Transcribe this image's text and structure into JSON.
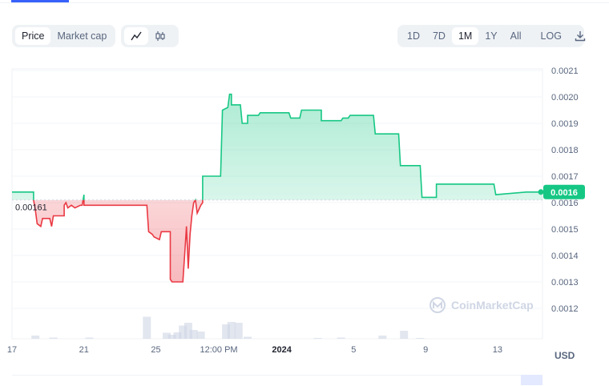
{
  "toolbar": {
    "mode_tabs": [
      {
        "label": "Price",
        "active": true
      },
      {
        "label": "Market cap",
        "active": false
      }
    ],
    "view_icons": [
      {
        "icon": "line-chart-icon",
        "active": true
      },
      {
        "icon": "candlestick-icon",
        "active": false
      }
    ],
    "ranges": [
      {
        "label": "1D",
        "active": false
      },
      {
        "label": "7D",
        "active": false
      },
      {
        "label": "1M",
        "active": true
      },
      {
        "label": "1Y",
        "active": false
      },
      {
        "label": "All",
        "active": false
      },
      {
        "label": "LOG",
        "active": false
      }
    ],
    "download_icon": "download-icon"
  },
  "watermark": "CoinMarketCap",
  "currency_label": "USD",
  "chart_data": {
    "type": "line",
    "title": "",
    "xlabel": "",
    "ylabel": "",
    "baseline_label": "0.00161",
    "baseline_value": 0.00161,
    "current_price_label": "0.0016",
    "current_price": 0.00164,
    "ylim": [
      0.0011,
      0.0021
    ],
    "y_ticks": [
      "0.0021",
      "0.0020",
      "0.0019",
      "0.0018",
      "0.0017",
      "0.0016",
      "0.0015",
      "0.0014",
      "0.0013",
      "0.0012"
    ],
    "y_tick_values": [
      0.0021,
      0.002,
      0.0019,
      0.0018,
      0.0017,
      0.0016,
      0.0015,
      0.0014,
      0.0013,
      0.0012
    ],
    "xlim": [
      17,
      46.5
    ],
    "x_ticks": [
      {
        "label": "17",
        "x": 17,
        "bold": false
      },
      {
        "label": "21",
        "x": 21,
        "bold": false
      },
      {
        "label": "25",
        "x": 25,
        "bold": false
      },
      {
        "label": "12:00 PM",
        "x": 28.5,
        "bold": false
      },
      {
        "label": "2024",
        "x": 32,
        "bold": true
      },
      {
        "label": "5",
        "x": 36,
        "bold": false
      },
      {
        "label": "9",
        "x": 40,
        "bold": false
      },
      {
        "label": "13",
        "x": 44,
        "bold": false
      }
    ],
    "colors": {
      "up": "#16c784",
      "down": "#ea3943",
      "volume": "#cfd6e4"
    },
    "series": [
      {
        "points": [
          [
            17.0,
            0.00164
          ],
          [
            18.2,
            0.00164
          ],
          [
            18.2,
            0.00161
          ],
          [
            18.3,
            0.00157
          ],
          [
            18.4,
            0.00152
          ],
          [
            18.6,
            0.00151
          ],
          [
            18.7,
            0.00154
          ],
          [
            19.1,
            0.00154
          ],
          [
            19.2,
            0.00151
          ],
          [
            19.3,
            0.00155
          ],
          [
            19.9,
            0.00155
          ],
          [
            19.9,
            0.00159
          ],
          [
            20.0,
            0.0016
          ],
          [
            20.1,
            0.00158
          ],
          [
            20.3,
            0.00159
          ],
          [
            20.5,
            0.00158
          ],
          [
            20.8,
            0.00159
          ],
          [
            20.9,
            0.00159
          ],
          [
            21.0,
            0.00163
          ],
          [
            21.0,
            0.00159
          ],
          [
            24.5,
            0.00159
          ],
          [
            24.6,
            0.00149
          ],
          [
            24.8,
            0.00148
          ],
          [
            24.9,
            0.00147
          ],
          [
            25.2,
            0.00146
          ],
          [
            25.3,
            0.00149
          ],
          [
            25.8,
            0.00149
          ],
          [
            25.8,
            0.00131
          ],
          [
            25.9,
            0.0013
          ],
          [
            26.5,
            0.0013
          ],
          [
            26.6,
            0.0014
          ],
          [
            26.7,
            0.00151
          ],
          [
            26.8,
            0.00135
          ],
          [
            26.9,
            0.00148
          ],
          [
            27.0,
            0.00155
          ],
          [
            27.1,
            0.0016
          ],
          [
            27.2,
            0.00161
          ],
          [
            27.3,
            0.00156
          ],
          [
            27.5,
            0.00159
          ],
          [
            27.6,
            0.0016
          ],
          [
            27.6,
            0.0017
          ],
          [
            28.6,
            0.0017
          ],
          [
            28.7,
            0.00195
          ],
          [
            29.0,
            0.00196
          ],
          [
            29.1,
            0.00201
          ],
          [
            29.2,
            0.00201
          ],
          [
            29.2,
            0.00197
          ],
          [
            29.7,
            0.00197
          ],
          [
            29.8,
            0.0019
          ],
          [
            30.1,
            0.0019
          ],
          [
            30.1,
            0.00193
          ],
          [
            30.7,
            0.00193
          ],
          [
            30.8,
            0.00194
          ],
          [
            32.4,
            0.00194
          ],
          [
            32.5,
            0.00192
          ],
          [
            33.0,
            0.00192
          ],
          [
            33.1,
            0.00195
          ],
          [
            34.2,
            0.00195
          ],
          [
            34.2,
            0.00191
          ],
          [
            35.3,
            0.00191
          ],
          [
            35.4,
            0.00192
          ],
          [
            35.7,
            0.00192
          ],
          [
            35.8,
            0.00193
          ],
          [
            37.1,
            0.00193
          ],
          [
            37.2,
            0.00186
          ],
          [
            38.5,
            0.00186
          ],
          [
            38.6,
            0.00174
          ],
          [
            39.7,
            0.00174
          ],
          [
            39.8,
            0.00162
          ],
          [
            40.6,
            0.00162
          ],
          [
            40.6,
            0.00167
          ],
          [
            43.8,
            0.00167
          ],
          [
            43.9,
            0.00163
          ],
          [
            45.6,
            0.00164
          ],
          [
            46.5,
            0.00164
          ]
        ]
      }
    ],
    "volume": [
      [
        18.3,
        0.08
      ],
      [
        19.3,
        0.03
      ],
      [
        21.3,
        0.03
      ],
      [
        24.5,
        0.55
      ],
      [
        25.6,
        0.15
      ],
      [
        25.9,
        0.1
      ],
      [
        26.2,
        0.16
      ],
      [
        26.5,
        0.33
      ],
      [
        26.8,
        0.4
      ],
      [
        27.1,
        0.22
      ],
      [
        27.5,
        0.18
      ],
      [
        28.9,
        0.36
      ],
      [
        29.2,
        0.42
      ],
      [
        29.6,
        0.4
      ],
      [
        30.1,
        0.05
      ],
      [
        34.0,
        0.02
      ],
      [
        35.3,
        0.03
      ],
      [
        37.6,
        0.08
      ],
      [
        38.8,
        0.2
      ],
      [
        39.7,
        0.02
      ]
    ]
  }
}
